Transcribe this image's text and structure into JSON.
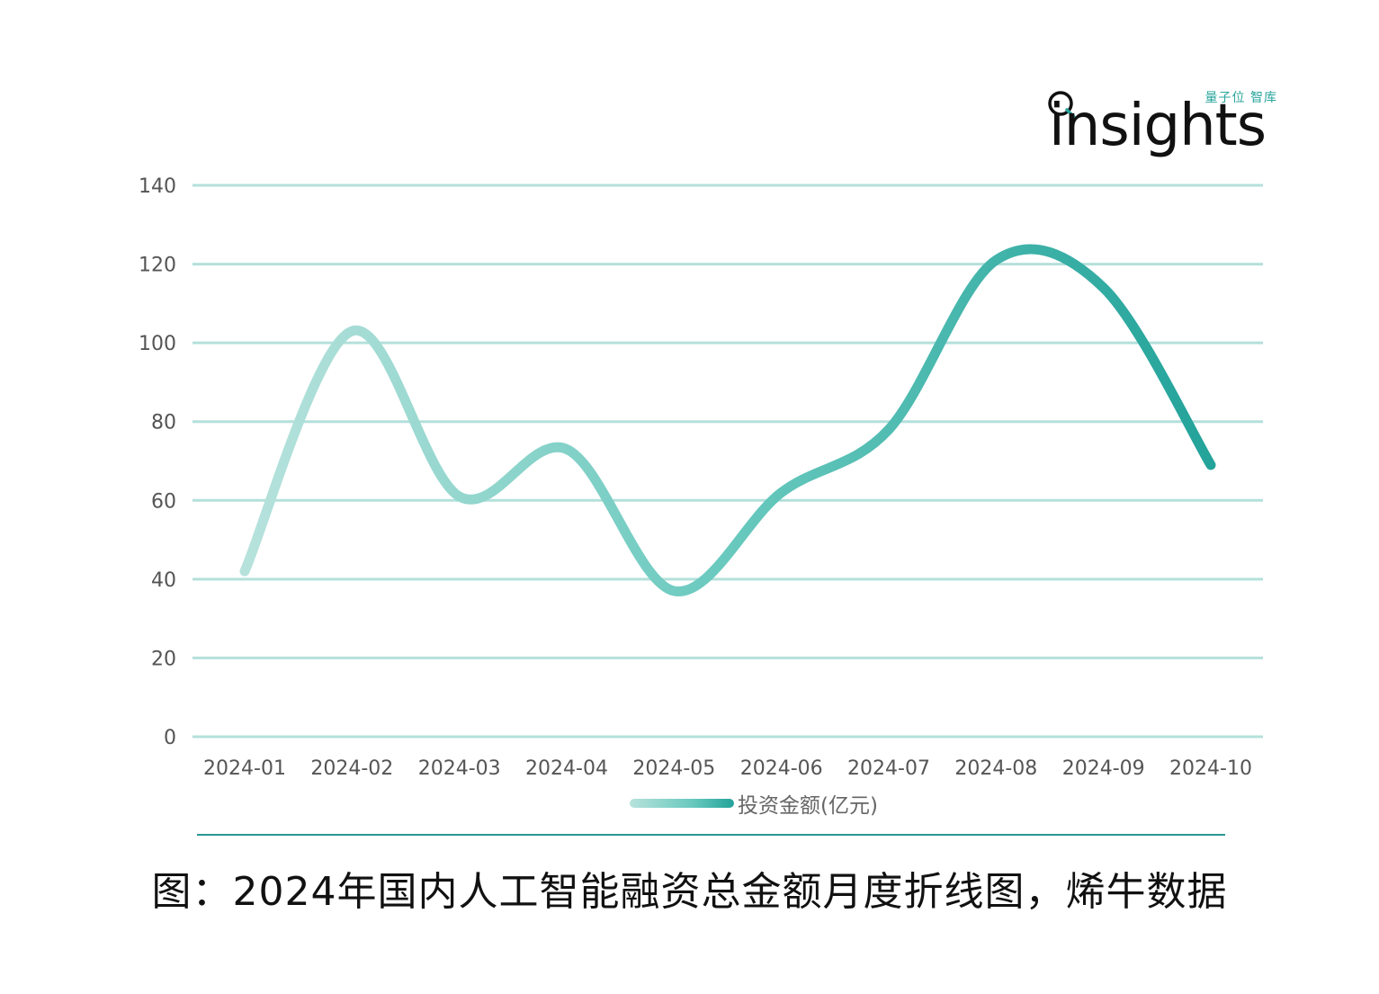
{
  "logo": {
    "subtitle": "量子位 智库",
    "wordmark": "insights",
    "accent_color": "#2aa59d"
  },
  "chart_data": {
    "type": "line",
    "x": [
      "2024-01",
      "2024-02",
      "2024-03",
      "2024-04",
      "2024-05",
      "2024-06",
      "2024-07",
      "2024-08",
      "2024-09",
      "2024-10"
    ],
    "series": [
      {
        "name": "投资金额(亿元)",
        "values": [
          42,
          103,
          61,
          73,
          37,
          62,
          78,
          121,
          114,
          69
        ],
        "gradient": [
          "#b7e2dc",
          "#69c9be",
          "#23a39a"
        ]
      }
    ],
    "ylim": [
      0,
      140
    ],
    "yticks": [
      0,
      20,
      40,
      60,
      80,
      100,
      120,
      140
    ],
    "grid": true,
    "grid_color": "#b4e0db",
    "smooth": true,
    "legend_position": "bottom-center"
  },
  "caption": "图：2024年国内人工智能融资总金额月度折线图，烯牛数据",
  "divider_color": "#2a9893"
}
